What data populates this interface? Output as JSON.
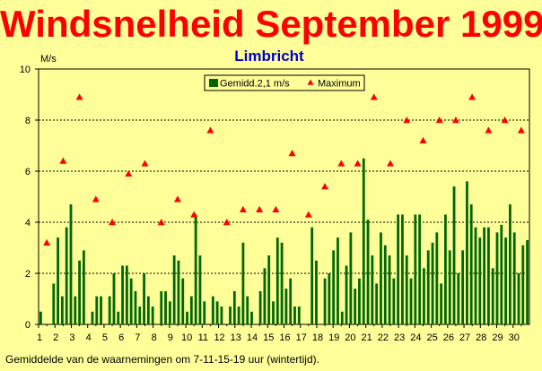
{
  "title": "Windsnelheid September 1999",
  "subtitle": "Limbricht",
  "footnote": "Gemiddelde van de waarnemingen om 7-11-15-19 uur (wintertijd).",
  "colors": {
    "background": "#ffff99",
    "bar": "#006600",
    "marker": "#ff0000",
    "title": "#ff0000",
    "subtitle": "#0000cc"
  },
  "chart_data": {
    "type": "bar",
    "title": "Windsnelheid September 1999",
    "subtitle": "Limbricht",
    "ylabel": "M/s",
    "ylim": [
      0,
      10
    ],
    "yticks": [
      0,
      2,
      4,
      6,
      8,
      10
    ],
    "xticks": [
      "1",
      "2",
      "3",
      "4",
      "5",
      "6",
      "7",
      "8",
      "9",
      "10",
      "11",
      "12",
      "13",
      "14",
      "15",
      "16",
      "17",
      "18",
      "19",
      "20",
      "21",
      "22",
      "23",
      "24",
      "25",
      "26",
      "27",
      "28",
      "29",
      "30"
    ],
    "xlim": [
      1,
      31
    ],
    "grid": true,
    "legend_position": "top-center",
    "series": [
      {
        "name": "Gemidd.2,1 m/s",
        "kind": "bar",
        "color": "#006600",
        "values": [
          0.5,
          0,
          0,
          1.6,
          3.4,
          1.1,
          3.8,
          4.7,
          1.1,
          2.5,
          2.9,
          0,
          0.5,
          1.1,
          1.1,
          0,
          1.1,
          2.0,
          0.5,
          2.3,
          2.3,
          1.8,
          1.3,
          0.7,
          2.0,
          1.1,
          0.7,
          0,
          1.3,
          1.3,
          0.9,
          2.7,
          2.5,
          1.8,
          0.5,
          1.1,
          4.3,
          2.7,
          0.9,
          0,
          1.1,
          0.9,
          0.7,
          0,
          0.7,
          1.3,
          0.7,
          3.2,
          1.1,
          0.5,
          0,
          1.3,
          2.2,
          2.7,
          0.9,
          3.4,
          3.2,
          1.4,
          1.8,
          0.7,
          0.7,
          0,
          0,
          3.8,
          2.5,
          0,
          1.8,
          2.0,
          2.9,
          3.4,
          0.5,
          2.3,
          3.6,
          1.4,
          1.8,
          6.5,
          4.1,
          2.7,
          1.6,
          3.6,
          3.1,
          2.7,
          1.8,
          4.3,
          4.3,
          2.7,
          1.8,
          4.3,
          4.3,
          2.2,
          2.9,
          3.2,
          3.6,
          1.6,
          4.3,
          2.9,
          5.4,
          2.0,
          2.9,
          5.6,
          4.7,
          3.8,
          3.4,
          3.8,
          3.8,
          2.2,
          3.6,
          3.9,
          3.4,
          4.7,
          3.6,
          2.0,
          3.1,
          3.3
        ]
      },
      {
        "name": "Maximum",
        "kind": "marker",
        "marker": "triangle",
        "color": "#ff0000",
        "x": [
          1.5,
          2.5,
          3.5,
          4.5,
          5.5,
          6.5,
          7.5,
          8.5,
          9.5,
          10.5,
          11.5,
          12.5,
          13.5,
          14.5,
          15.5,
          16.5,
          17.5,
          18.5,
          19.5,
          20.5,
          21.5,
          22.5,
          23.5,
          24.5,
          25.5,
          26.5,
          27.5,
          28.5,
          29.5,
          30.5
        ],
        "values": [
          3.2,
          6.4,
          8.9,
          4.9,
          4.0,
          5.9,
          6.3,
          4.0,
          4.9,
          4.3,
          7.6,
          4.0,
          4.5,
          4.5,
          4.5,
          6.7,
          4.3,
          5.4,
          6.3,
          6.3,
          8.9,
          6.3,
          8.0,
          7.2,
          8.0,
          8.0,
          8.9,
          7.6,
          8.0,
          7.6
        ]
      }
    ]
  }
}
